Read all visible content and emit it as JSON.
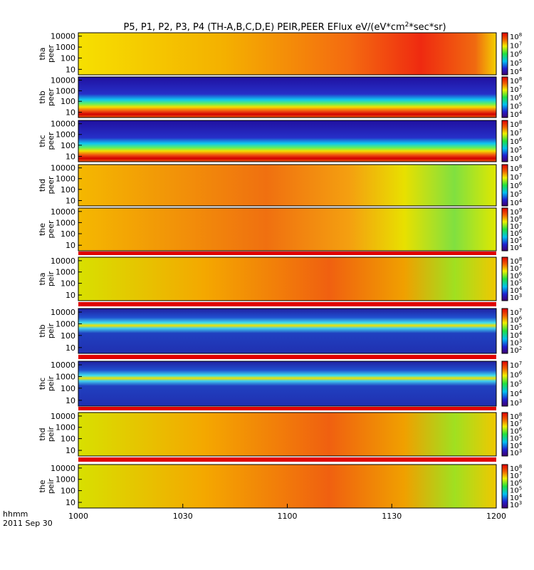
{
  "title_parts": {
    "pre": "P5, P1, P2, P3, P4 (TH-A,B,C,D,E) PEIR,PEER EFlux eV/(eV*cm",
    "sup": "2",
    "post": "*sec*sr)"
  },
  "x_axis": {
    "origin_label_1": "hhmm",
    "origin_label_2": "2011 Sep 30",
    "tick_labels": [
      "1000",
      "1030",
      "1100",
      "1130",
      "1200"
    ]
  },
  "chart_data": [
    {
      "type": "heatmap",
      "ylabel_1": "tha",
      "ylabel_2": "peer",
      "y_tick_labels": [
        "10000",
        "1000",
        "100",
        "10"
      ],
      "colorbar_base": "10",
      "colorbar_exponents": [
        "8",
        "7",
        "6",
        "5",
        "4"
      ],
      "pattern": "hot-right"
    },
    {
      "type": "heatmap",
      "ylabel_1": "thb",
      "ylabel_2": "peer",
      "y_tick_labels": [
        "10000",
        "1000",
        "100",
        "10"
      ],
      "colorbar_base": "10",
      "colorbar_exponents": [
        "8",
        "7",
        "6",
        "5",
        "4"
      ],
      "pattern": "band-low"
    },
    {
      "type": "heatmap",
      "ylabel_1": "thc",
      "ylabel_2": "peer",
      "y_tick_labels": [
        "10000",
        "1000",
        "100",
        "10"
      ],
      "colorbar_base": "10",
      "colorbar_exponents": [
        "8",
        "7",
        "6",
        "5",
        "4"
      ],
      "pattern": "band-low"
    },
    {
      "type": "heatmap",
      "ylabel_1": "thd",
      "ylabel_2": "peer",
      "y_tick_labels": [
        "10000",
        "1000",
        "100",
        "10"
      ],
      "colorbar_base": "10",
      "colorbar_exponents": [
        "8",
        "7",
        "6",
        "5",
        "4"
      ],
      "pattern": "warm-fade"
    },
    {
      "type": "heatmap",
      "ylabel_1": "the",
      "ylabel_2": "peer",
      "y_tick_labels": [
        "10000",
        "1000",
        "100",
        "10"
      ],
      "colorbar_base": "10",
      "colorbar_exponents": [
        "9",
        "8",
        "7",
        "6",
        "5",
        "4"
      ],
      "pattern": "warm-fade"
    },
    {
      "type": "heatmap",
      "ylabel_1": "tha",
      "ylabel_2": "peir",
      "y_tick_labels": [
        "10000",
        "1000",
        "100",
        "10"
      ],
      "colorbar_base": "10",
      "colorbar_exponents": [
        "8",
        "7",
        "6",
        "5",
        "4",
        "3"
      ],
      "pattern": "ion-warm"
    },
    {
      "type": "heatmap",
      "ylabel_1": "thb",
      "ylabel_2": "peir",
      "y_tick_labels": [
        "10000",
        "1000",
        "100",
        "10"
      ],
      "colorbar_base": "10",
      "colorbar_exponents": [
        "7",
        "6",
        "5",
        "4",
        "3",
        "2"
      ],
      "pattern": "noise-band"
    },
    {
      "type": "heatmap",
      "ylabel_1": "thc",
      "ylabel_2": "peir",
      "y_tick_labels": [
        "10000",
        "1000",
        "100",
        "10"
      ],
      "colorbar_base": "10",
      "colorbar_exponents": [
        "7",
        "6",
        "5",
        "4",
        "3"
      ],
      "pattern": "noise-band"
    },
    {
      "type": "heatmap",
      "ylabel_1": "thd",
      "ylabel_2": "peir",
      "y_tick_labels": [
        "10000",
        "1000",
        "100",
        "10"
      ],
      "colorbar_base": "10",
      "colorbar_exponents": [
        "8",
        "7",
        "6",
        "5",
        "4",
        "3"
      ],
      "pattern": "ion-warm"
    },
    {
      "type": "heatmap",
      "ylabel_1": "the",
      "ylabel_2": "peir",
      "y_tick_labels": [
        "10000",
        "1000",
        "100",
        "10"
      ],
      "colorbar_base": "10",
      "colorbar_exponents": [
        "8",
        "7",
        "6",
        "5",
        "4",
        "3"
      ],
      "pattern": "ion-warm"
    }
  ]
}
